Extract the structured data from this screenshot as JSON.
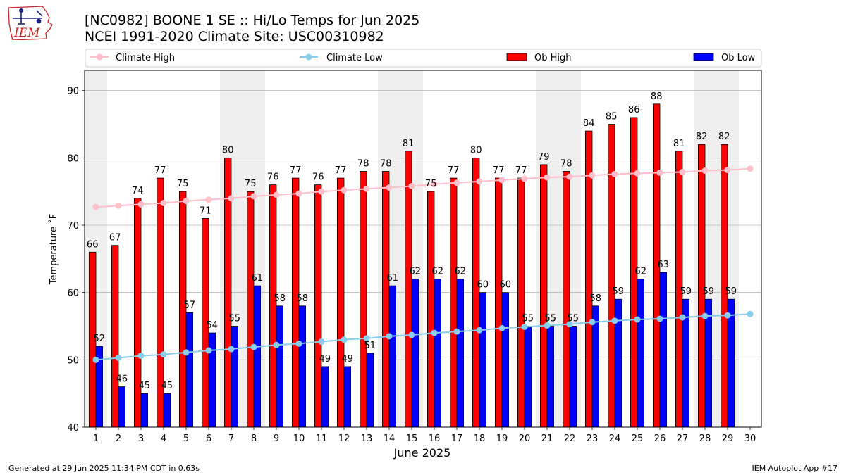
{
  "title_line1": "[NC0982] BOONE 1 SE :: Hi/Lo Temps for Jun 2025",
  "title_line2": "NCEI 1991-2020 Climate Site: USC00310982",
  "logo_text": "IEM",
  "footer_left": "Generated at 29 Jun 2025 11:34 PM CDT in 0.63s",
  "footer_right": "IEM Autoplot App #17",
  "colors": {
    "ob_high": "#ff0000",
    "ob_low": "#0000ff",
    "climate_high": "#ffc0cb",
    "climate_low": "#87ceeb",
    "weekend_shade": "#efefef",
    "grid": "#b0b0b0"
  },
  "chart_data": {
    "type": "bar",
    "xlabel": "June 2025",
    "ylabel": "Temperature ˚F",
    "ylim": [
      40,
      93
    ],
    "yticks": [
      40,
      50,
      60,
      70,
      80,
      90
    ],
    "grid": "horizontal",
    "legend_position": "top",
    "categories": [
      "1",
      "2",
      "3",
      "4",
      "5",
      "6",
      "7",
      "8",
      "9",
      "10",
      "11",
      "12",
      "13",
      "14",
      "15",
      "16",
      "17",
      "18",
      "19",
      "20",
      "21",
      "22",
      "23",
      "24",
      "25",
      "26",
      "27",
      "28",
      "29",
      "30"
    ],
    "weekend_days": [
      1,
      7,
      8,
      14,
      15,
      21,
      22,
      28,
      29
    ],
    "series": [
      {
        "name": "Ob High",
        "kind": "bar",
        "values": [
          66,
          67,
          74,
          77,
          75,
          71,
          80,
          75,
          76,
          77,
          76,
          77,
          78,
          78,
          81,
          75,
          77,
          80,
          77,
          77,
          79,
          78,
          84,
          85,
          86,
          88,
          81,
          82,
          82,
          null
        ]
      },
      {
        "name": "Ob Low",
        "kind": "bar",
        "values": [
          52,
          46,
          45,
          45,
          57,
          54,
          55,
          61,
          58,
          58,
          49,
          49,
          51,
          61,
          62,
          62,
          62,
          60,
          60,
          55,
          55,
          55,
          58,
          59,
          62,
          63,
          59,
          59,
          59,
          null
        ]
      },
      {
        "name": "Climate High",
        "kind": "line",
        "values": [
          72.7,
          72.9,
          73.1,
          73.3,
          73.6,
          73.8,
          74.0,
          74.3,
          74.5,
          74.7,
          75.0,
          75.2,
          75.4,
          75.6,
          75.8,
          76.1,
          76.3,
          76.5,
          76.7,
          76.9,
          77.1,
          77.2,
          77.4,
          77.6,
          77.7,
          77.8,
          77.9,
          78.1,
          78.2,
          78.4
        ]
      },
      {
        "name": "Climate Low",
        "kind": "line",
        "values": [
          50.0,
          50.3,
          50.6,
          50.8,
          51.1,
          51.4,
          51.6,
          51.9,
          52.2,
          52.4,
          52.7,
          53.0,
          53.2,
          53.5,
          53.7,
          54.0,
          54.2,
          54.4,
          54.7,
          54.9,
          55.1,
          55.3,
          55.6,
          55.8,
          56.0,
          56.1,
          56.3,
          56.5,
          56.6,
          56.8
        ]
      }
    ]
  }
}
